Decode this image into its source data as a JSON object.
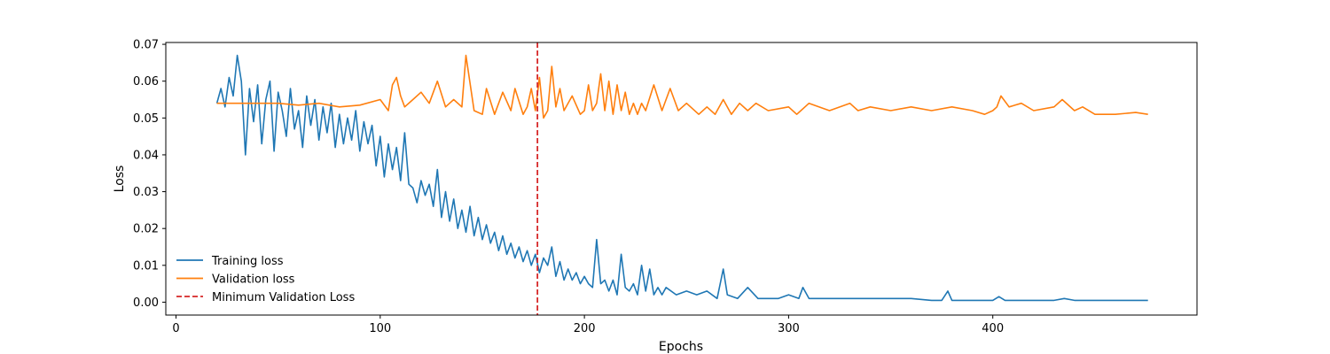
{
  "chart_data": {
    "type": "line",
    "title": "",
    "xlabel": "Epochs",
    "ylabel": "Loss",
    "xlim": [
      -5,
      500
    ],
    "ylim": [
      -0.0035,
      0.0705
    ],
    "xticks": [
      0,
      100,
      200,
      300,
      400
    ],
    "yticks": [
      0.0,
      0.01,
      0.02,
      0.03,
      0.04,
      0.05,
      0.06,
      0.07
    ],
    "ytick_labels": [
      "0.00",
      "0.01",
      "0.02",
      "0.03",
      "0.04",
      "0.05",
      "0.06",
      "0.07"
    ],
    "grid": false,
    "legend_position": "lower-left",
    "series": [
      {
        "name": "Training loss",
        "color": "#1f77b4",
        "style": "solid",
        "x": [
          20,
          22,
          24,
          26,
          28,
          30,
          32,
          34,
          36,
          38,
          40,
          42,
          44,
          46,
          48,
          50,
          52,
          54,
          56,
          58,
          60,
          62,
          64,
          66,
          68,
          70,
          72,
          74,
          76,
          78,
          80,
          82,
          84,
          86,
          88,
          90,
          92,
          94,
          96,
          98,
          100,
          102,
          104,
          106,
          108,
          110,
          112,
          114,
          116,
          118,
          120,
          122,
          124,
          126,
          128,
          130,
          132,
          134,
          136,
          138,
          140,
          142,
          144,
          146,
          148,
          150,
          152,
          154,
          156,
          158,
          160,
          162,
          164,
          166,
          168,
          170,
          172,
          174,
          176,
          178,
          180,
          182,
          184,
          186,
          188,
          190,
          192,
          194,
          196,
          198,
          200,
          202,
          204,
          206,
          208,
          210,
          212,
          214,
          216,
          218,
          220,
          222,
          224,
          226,
          228,
          230,
          232,
          234,
          236,
          238,
          240,
          245,
          250,
          255,
          260,
          265,
          268,
          270,
          275,
          280,
          285,
          290,
          295,
          300,
          305,
          307,
          310,
          320,
          330,
          340,
          350,
          360,
          370,
          375,
          378,
          380,
          390,
          400,
          403,
          406,
          410,
          420,
          430,
          435,
          440,
          450,
          460,
          470,
          476
        ],
        "y": [
          0.054,
          0.058,
          0.053,
          0.061,
          0.056,
          0.067,
          0.06,
          0.04,
          0.058,
          0.049,
          0.059,
          0.043,
          0.055,
          0.06,
          0.041,
          0.057,
          0.052,
          0.045,
          0.058,
          0.047,
          0.052,
          0.042,
          0.056,
          0.048,
          0.055,
          0.044,
          0.053,
          0.046,
          0.054,
          0.042,
          0.051,
          0.043,
          0.05,
          0.044,
          0.052,
          0.041,
          0.049,
          0.043,
          0.048,
          0.037,
          0.045,
          0.034,
          0.043,
          0.036,
          0.042,
          0.033,
          0.046,
          0.032,
          0.031,
          0.027,
          0.033,
          0.029,
          0.032,
          0.026,
          0.036,
          0.023,
          0.03,
          0.022,
          0.028,
          0.02,
          0.025,
          0.019,
          0.026,
          0.018,
          0.023,
          0.017,
          0.021,
          0.016,
          0.019,
          0.014,
          0.018,
          0.013,
          0.016,
          0.012,
          0.015,
          0.011,
          0.014,
          0.01,
          0.013,
          0.008,
          0.012,
          0.01,
          0.015,
          0.007,
          0.011,
          0.006,
          0.009,
          0.006,
          0.008,
          0.005,
          0.007,
          0.005,
          0.004,
          0.017,
          0.005,
          0.006,
          0.003,
          0.006,
          0.002,
          0.013,
          0.004,
          0.003,
          0.005,
          0.002,
          0.01,
          0.003,
          0.009,
          0.002,
          0.004,
          0.002,
          0.004,
          0.002,
          0.003,
          0.002,
          0.003,
          0.001,
          0.009,
          0.002,
          0.001,
          0.004,
          0.001,
          0.001,
          0.001,
          0.002,
          0.001,
          0.004,
          0.001,
          0.001,
          0.001,
          0.001,
          0.001,
          0.001,
          0.0005,
          0.0005,
          0.003,
          0.0005,
          0.0005,
          0.0005,
          0.0015,
          0.0005,
          0.0005,
          0.0005,
          0.0005,
          0.001,
          0.0005,
          0.0005,
          0.0005,
          0.0005,
          0.0005
        ]
      },
      {
        "name": "Validation loss",
        "color": "#ff7f0e",
        "style": "solid",
        "x": [
          20,
          30,
          40,
          50,
          60,
          70,
          80,
          90,
          100,
          104,
          106,
          108,
          110,
          112,
          116,
          120,
          124,
          128,
          132,
          136,
          140,
          142,
          146,
          150,
          152,
          156,
          160,
          164,
          166,
          170,
          172,
          174,
          176,
          178,
          180,
          182,
          184,
          186,
          188,
          190,
          194,
          198,
          200,
          202,
          204,
          206,
          208,
          210,
          212,
          214,
          216,
          218,
          220,
          222,
          224,
          226,
          228,
          230,
          234,
          238,
          242,
          246,
          250,
          256,
          260,
          264,
          268,
          272,
          276,
          280,
          284,
          290,
          300,
          304,
          310,
          320,
          330,
          334,
          340,
          350,
          360,
          370,
          380,
          390,
          396,
          400,
          402,
          404,
          408,
          414,
          420,
          430,
          434,
          440,
          444,
          450,
          460,
          470,
          476
        ],
        "y": [
          0.054,
          0.054,
          0.054,
          0.054,
          0.0535,
          0.054,
          0.053,
          0.0535,
          0.055,
          0.052,
          0.059,
          0.061,
          0.056,
          0.053,
          0.055,
          0.057,
          0.054,
          0.06,
          0.053,
          0.055,
          0.053,
          0.067,
          0.052,
          0.051,
          0.058,
          0.051,
          0.057,
          0.052,
          0.058,
          0.051,
          0.053,
          0.058,
          0.052,
          0.061,
          0.05,
          0.052,
          0.064,
          0.053,
          0.058,
          0.052,
          0.056,
          0.051,
          0.052,
          0.059,
          0.052,
          0.054,
          0.062,
          0.052,
          0.06,
          0.051,
          0.059,
          0.052,
          0.057,
          0.051,
          0.054,
          0.051,
          0.054,
          0.052,
          0.059,
          0.052,
          0.058,
          0.052,
          0.054,
          0.051,
          0.053,
          0.051,
          0.055,
          0.051,
          0.054,
          0.052,
          0.054,
          0.052,
          0.053,
          0.051,
          0.054,
          0.052,
          0.054,
          0.052,
          0.053,
          0.052,
          0.053,
          0.052,
          0.053,
          0.052,
          0.051,
          0.052,
          0.053,
          0.056,
          0.053,
          0.054,
          0.052,
          0.053,
          0.055,
          0.052,
          0.053,
          0.051,
          0.051,
          0.0515,
          0.051
        ]
      }
    ],
    "annotations": [
      {
        "name": "Minimum Validation Loss",
        "type": "vline",
        "x": 177,
        "color": "#d62728",
        "style": "dashed"
      }
    ]
  }
}
